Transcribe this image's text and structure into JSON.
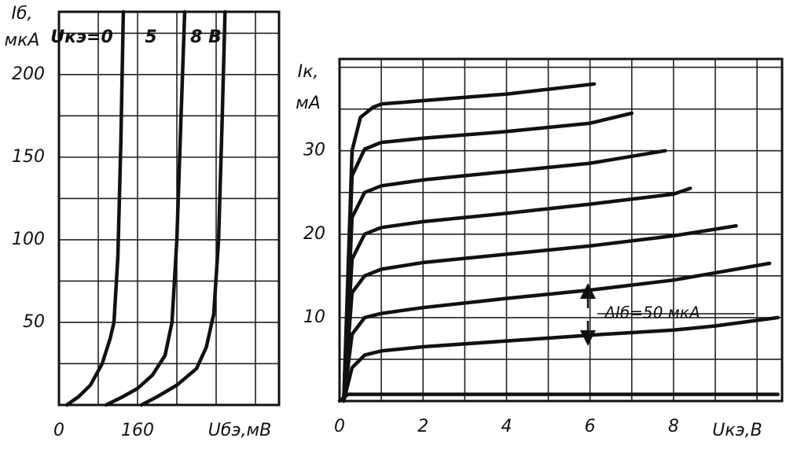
{
  "chart_data": [
    {
      "type": "line",
      "y_label_symbol": "Iб,",
      "y_label_unit": "мкА",
      "x_label": "Uбэ,мВ",
      "xlim": [
        0,
        448
      ],
      "ylim": [
        0,
        238
      ],
      "xticks": [
        0,
        160
      ],
      "yticks": [
        50,
        100,
        150,
        200
      ],
      "xgrid": [
        80,
        240,
        320,
        400
      ],
      "ygrid": [
        25,
        75,
        125,
        175,
        225
      ],
      "grid": true,
      "color": "#111111",
      "series": [
        {
          "name": "Uкэ=0",
          "x": [
            16,
            40,
            64,
            88,
            104,
            112,
            120,
            126,
            131
          ],
          "values": [
            0,
            5,
            12,
            25,
            40,
            50,
            90,
            160,
            238
          ]
        },
        {
          "name": "5",
          "x": [
            96,
            130,
            160,
            190,
            216,
            230,
            240,
            248,
            256
          ],
          "values": [
            0,
            5,
            10,
            18,
            30,
            50,
            100,
            170,
            238
          ]
        },
        {
          "name": "8 В",
          "x": [
            168,
            200,
            240,
            280,
            300,
            315,
            325,
            332,
            338
          ],
          "values": [
            0,
            5,
            12,
            22,
            35,
            55,
            100,
            170,
            238
          ]
        }
      ]
    },
    {
      "type": "line",
      "y_label_symbol": "Iк,",
      "y_label_unit": "мА",
      "x_label": "Uкэ,В",
      "annotation": "ΔIб=50 мкА",
      "xlim": [
        0,
        10.6
      ],
      "ylim": [
        0,
        41
      ],
      "xticks": [
        0,
        2,
        4,
        6,
        8
      ],
      "yticks": [
        10,
        20,
        30
      ],
      "xgrid": [
        1,
        3,
        5,
        7,
        9,
        10
      ],
      "ygrid": [
        5,
        15,
        25,
        35,
        40
      ],
      "grid": true,
      "color": "#111111",
      "series": [
        {
          "x": [
            0,
            0.2,
            10.5
          ],
          "values": [
            0,
            0.8,
            0.8
          ]
        },
        {
          "x": [
            0.1,
            0.3,
            0.6,
            1,
            2,
            4,
            6,
            8,
            9,
            10.5
          ],
          "values": [
            0,
            4,
            5.5,
            6,
            6.5,
            7.2,
            7.9,
            8.5,
            9,
            10
          ]
        },
        {
          "x": [
            0.1,
            0.3,
            0.6,
            1,
            2,
            4,
            6,
            8,
            10.3
          ],
          "values": [
            0,
            8,
            10,
            10.5,
            11.2,
            12.3,
            13.3,
            14.5,
            16.5
          ]
        },
        {
          "x": [
            0.1,
            0.3,
            0.6,
            1,
            2,
            4,
            6,
            8,
            9.5
          ],
          "values": [
            0,
            13,
            15,
            15.8,
            16.6,
            17.6,
            18.6,
            19.8,
            21
          ]
        },
        {
          "x": [
            0.1,
            0.3,
            0.6,
            1,
            2,
            4,
            6,
            8,
            8.4
          ],
          "values": [
            0,
            17,
            20,
            20.8,
            21.5,
            22.5,
            23.6,
            24.8,
            25.5
          ]
        },
        {
          "x": [
            0.1,
            0.3,
            0.6,
            1,
            2,
            4,
            6,
            7.8
          ],
          "values": [
            0,
            22,
            25,
            25.8,
            26.5,
            27.5,
            28.5,
            30
          ]
        },
        {
          "x": [
            0.1,
            0.3,
            0.6,
            1,
            2,
            4,
            6,
            7
          ],
          "values": [
            0,
            27,
            30.2,
            31,
            31.5,
            32.3,
            33.3,
            34.5
          ]
        },
        {
          "x": [
            0.1,
            0.3,
            0.5,
            0.8,
            1,
            2,
            4,
            6.1
          ],
          "values": [
            0,
            30,
            34,
            35.2,
            35.6,
            36,
            36.8,
            38
          ]
        }
      ]
    }
  ]
}
